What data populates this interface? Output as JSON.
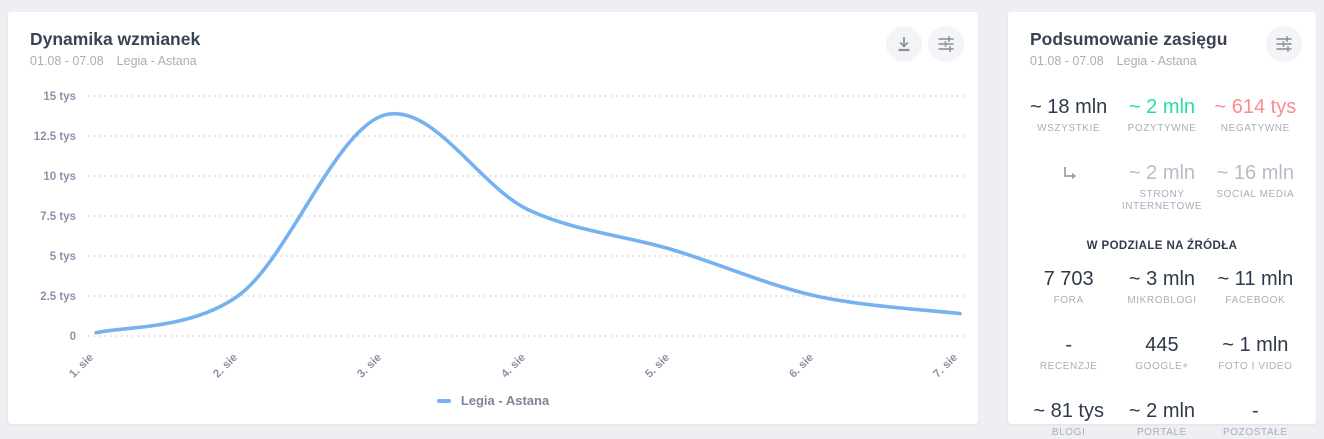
{
  "left_panel": {
    "title": "Dynamika wzmianek",
    "date_range": "01.08 - 07.08",
    "filter_label": "Legia - Astana",
    "legend": {
      "label": "Legia - Astana",
      "color": "#76b1f0"
    }
  },
  "chart_data": {
    "type": "line",
    "title": "Dynamika wzmianek",
    "x": [
      "1. sie",
      "2. sie",
      "3. sie",
      "4. sie",
      "5. sie",
      "6. sie",
      "7. sie"
    ],
    "series": [
      {
        "name": "Legia - Astana",
        "color": "#76b1f0",
        "values": [
          200,
          2600,
          13800,
          7900,
          5400,
          2500,
          1400
        ]
      }
    ],
    "y_ticks": [
      {
        "value": 0,
        "label": "0"
      },
      {
        "value": 2500,
        "label": "2.5 tys"
      },
      {
        "value": 5000,
        "label": "5 tys"
      },
      {
        "value": 7500,
        "label": "7.5 tys"
      },
      {
        "value": 10000,
        "label": "10 tys"
      },
      {
        "value": 12500,
        "label": "12.5 tys"
      },
      {
        "value": 15000,
        "label": "15 tys"
      }
    ],
    "ylim": [
      0,
      15000
    ],
    "grid": "horizontal-dotted",
    "legend_position": "bottom-center"
  },
  "right_panel": {
    "title": "Podsumowanie zasięgu",
    "date_range": "01.08 - 07.08",
    "filter_label": "Legia - Astana",
    "summary": [
      {
        "value": "~ 18 mln",
        "label": "WSZYSTKIE",
        "color": "#2e3a4a"
      },
      {
        "value": "~ 2 mln",
        "label": "POZYTYWNE",
        "color": "#27dc9c"
      },
      {
        "value": "~ 614 tys",
        "label": "NEGATYWNE",
        "color": "#fb8a93"
      }
    ],
    "breakdown": [
      {
        "value": "~ 2 mln",
        "label": "STRONY INTERNETOWE",
        "color": "#b6bcc8"
      },
      {
        "value": "~ 16 mln",
        "label": "SOCIAL MEDIA",
        "color": "#b6bcc8"
      }
    ],
    "sources_header": "W PODZIALE NA ŹRÓDŁA",
    "sources": [
      {
        "value": "7 703",
        "label": "FORA"
      },
      {
        "value": "~ 3 mln",
        "label": "MIKROBLOGI"
      },
      {
        "value": "~ 11 mln",
        "label": "FACEBOOK"
      },
      {
        "value": "-",
        "label": "RECENZJE"
      },
      {
        "value": "445",
        "label": "GOOGLE+"
      },
      {
        "value": "~ 1 mln",
        "label": "FOTO I VIDEO"
      },
      {
        "value": "~ 81 tys",
        "label": "BLOGI"
      },
      {
        "value": "~ 2 mln",
        "label": "PORTALE"
      },
      {
        "value": "-",
        "label": "POZOSTAŁE"
      }
    ]
  },
  "colors": {
    "background": "#edeff3",
    "card": "#ffffff",
    "accent_line": "#76b1f0",
    "positive": "#27dc9c",
    "negative": "#fb8a93",
    "muted_value": "#b6bcc8",
    "axis_text": "#8b92a8"
  }
}
